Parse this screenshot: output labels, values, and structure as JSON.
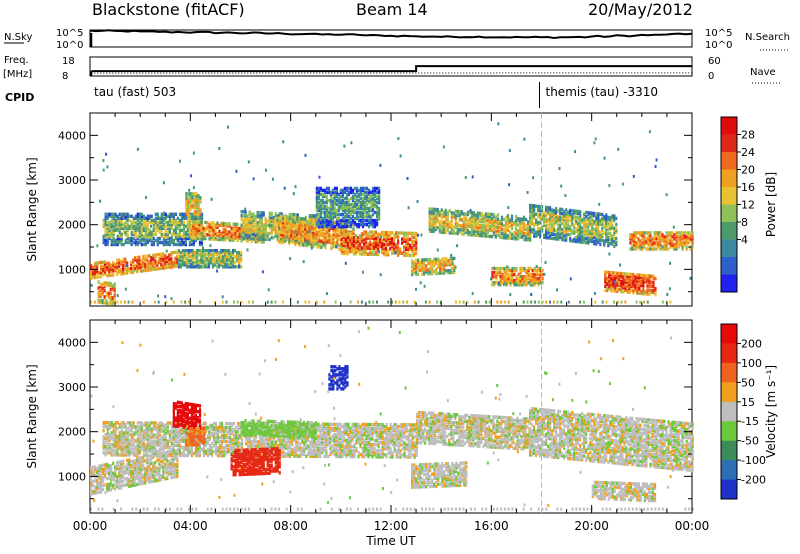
{
  "header": {
    "station": "Blackstone (fitACF)",
    "beam": "Beam 14",
    "date": "20/May/2012"
  },
  "chart_data": [
    {
      "type": "line",
      "panel": "noise",
      "left_label": "N.Sky",
      "left_ticks": [
        "10^5",
        "10^0"
      ],
      "right_label": "N.Search",
      "right_ticks": [
        "10^5",
        "10^0"
      ],
      "series": [
        {
          "name": "N.Sky",
          "x": [
            0,
            1,
            2,
            3,
            4,
            5,
            6,
            7,
            8,
            9,
            10,
            11,
            12,
            13,
            14,
            15,
            16,
            17,
            18,
            19,
            20,
            21,
            22,
            23,
            24
          ],
          "values": [
            0.95,
            0.93,
            0.9,
            0.88,
            0.86,
            0.84,
            0.82,
            0.8,
            0.77,
            0.74,
            0.72,
            0.68,
            0.65,
            0.62,
            0.6,
            0.6,
            0.58,
            0.57,
            0.57,
            0.58,
            0.62,
            0.66,
            0.7,
            0.75,
            0.8
          ]
        }
      ]
    },
    {
      "type": "line",
      "panel": "frequency",
      "left_label": "Freq.",
      "left_unit": "[MHz]",
      "left_ticks": [
        "18",
        "8"
      ],
      "right_label": "Nave",
      "right_ticks": [
        "60",
        "0"
      ],
      "series": [
        {
          "name": "Freq.",
          "x": [
            0.05,
            13.0,
            13.0,
            24.0
          ],
          "values": [
            10.6,
            10.6,
            13.2,
            13.2
          ]
        },
        {
          "name": "Nave",
          "x": [
            0.05,
            24.0
          ],
          "values": [
            9,
            10
          ]
        }
      ]
    },
    {
      "type": "annotation",
      "panel": "cpid",
      "label": "CPID",
      "segments": [
        {
          "start": 0,
          "text": "tau (fast) 503"
        },
        {
          "start": 18,
          "text": "themis (tau) -3310"
        }
      ]
    },
    {
      "type": "heatmap",
      "panel": "power",
      "ylabel": "Slant Range [km]",
      "ylim": [
        180,
        4500
      ],
      "yticks": [
        1000,
        2000,
        3000,
        4000
      ],
      "xlim": [
        0,
        24
      ],
      "colorbar": {
        "label": "Power [dB]",
        "ticks": [
          "28",
          "24",
          "20",
          "16",
          "12",
          "8",
          "4"
        ],
        "range": [
          0,
          30
        ],
        "colors": [
          "#2020f0",
          "#2f5fc8",
          "#3d8aa0",
          "#4d9a6a",
          "#8fc05a",
          "#e8c232",
          "#f0a020",
          "#ee6a1e",
          "#e02818",
          "#e00c0c"
        ]
      },
      "bands": [
        {
          "t0": 0.0,
          "t1": 3.5,
          "r0": 820,
          "r1": 1180,
          "start_range": 980,
          "end_range": 1250,
          "v": 23
        },
        {
          "t0": 0.3,
          "t1": 1.0,
          "r0": 280,
          "r1": 760,
          "start_range": 500,
          "end_range": 450,
          "v": 22
        },
        {
          "t0": 0.5,
          "t1": 4.5,
          "r0": 1550,
          "r1": 2250,
          "start_range": 1900,
          "end_range": 1900,
          "v": 13
        },
        {
          "t0": 3.5,
          "t1": 6.0,
          "r0": 1100,
          "r1": 1500,
          "start_range": 1250,
          "end_range": 1250,
          "v": 14
        },
        {
          "t0": 3.8,
          "t1": 4.4,
          "r0": 2100,
          "r1": 2700,
          "start_range": 2400,
          "end_range": 2400,
          "v": 18
        },
        {
          "t0": 4.0,
          "t1": 7.0,
          "r0": 1700,
          "r1": 2100,
          "start_range": 1900,
          "end_range": 1800,
          "v": 21
        },
        {
          "t0": 6.0,
          "t1": 9.0,
          "r0": 1600,
          "r1": 2200,
          "start_range": 2000,
          "end_range": 1900,
          "v": 16
        },
        {
          "t0": 7.5,
          "t1": 10.5,
          "r0": 1500,
          "r1": 2100,
          "start_range": 1900,
          "end_range": 1700,
          "v": 20
        },
        {
          "t0": 10.0,
          "t1": 13.0,
          "r0": 1300,
          "r1": 1800,
          "start_range": 1600,
          "end_range": 1550,
          "v": 24
        },
        {
          "t0": 9.0,
          "t1": 11.5,
          "r0": 2100,
          "r1": 3000,
          "start_range": 2400,
          "end_range": 2400,
          "v": 10
        },
        {
          "t0": 12.8,
          "t1": 14.5,
          "r0": 950,
          "r1": 1300,
          "start_range": 1050,
          "end_range": 1100,
          "v": 18
        },
        {
          "t0": 13.5,
          "t1": 17.5,
          "r0": 1850,
          "r1": 2350,
          "start_range": 2100,
          "end_range": 1900,
          "v": 17
        },
        {
          "t0": 16.0,
          "t1": 18.0,
          "r0": 700,
          "r1": 1100,
          "start_range": 850,
          "end_range": 850,
          "v": 20
        },
        {
          "t0": 17.5,
          "t1": 21.0,
          "r0": 1600,
          "r1": 2300,
          "start_range": 2100,
          "end_range": 1850,
          "v": 14
        },
        {
          "t0": 20.5,
          "t1": 22.5,
          "r0": 500,
          "r1": 950,
          "start_range": 750,
          "end_range": 650,
          "v": 25
        },
        {
          "t0": 21.5,
          "t1": 24.0,
          "r0": 1400,
          "r1": 1800,
          "start_range": 1650,
          "end_range": 1650,
          "v": 21
        }
      ]
    },
    {
      "type": "heatmap",
      "panel": "velocity",
      "xlabel": "Time UT",
      "ylabel": "Slant Range [km]",
      "ylim": [
        180,
        4500
      ],
      "yticks": [
        1000,
        2000,
        3000,
        4000
      ],
      "xlim": [
        0,
        24
      ],
      "xticks": [
        "00:00",
        "04:00",
        "08:00",
        "12:00",
        "16:00",
        "20:00",
        "00:00"
      ],
      "colorbar": {
        "label": "Velocity [m s⁻¹]",
        "ticks": [
          "200",
          "100",
          "50",
          "15",
          "-15",
          "-50",
          "-100",
          "-200"
        ],
        "colors": [
          "#1e32c8",
          "#2d6eb4",
          "#3c8c5a",
          "#6ec83c",
          "#bebebe",
          "#f0a01e",
          "#ee641e",
          "#e62814",
          "#e60a0a"
        ]
      },
      "bands": [
        {
          "t0": 0.0,
          "t1": 3.5,
          "r0": 700,
          "r1": 1300,
          "start_range": 900,
          "end_range": 1300,
          "v": 0
        },
        {
          "t0": 0.5,
          "t1": 13.0,
          "r0": 1450,
          "r1": 2200,
          "start_range": 1850,
          "end_range": 1800,
          "v": 0
        },
        {
          "t0": 3.3,
          "t1": 4.4,
          "r0": 2150,
          "r1": 2700,
          "start_range": 2400,
          "end_range": 2300,
          "v": -220
        },
        {
          "t0": 3.8,
          "t1": 4.6,
          "r0": 1700,
          "r1": 2100,
          "start_range": 1900,
          "end_range": 1900,
          "v": -60
        },
        {
          "t0": 5.6,
          "t1": 7.6,
          "r0": 1050,
          "r1": 1600,
          "start_range": 1300,
          "end_range": 1350,
          "v": -180
        },
        {
          "t0": 6.0,
          "t1": 9.0,
          "r0": 1950,
          "r1": 2300,
          "start_range": 2100,
          "end_range": 2050,
          "v": 30
        },
        {
          "t0": 9.5,
          "t1": 10.3,
          "r0": 3000,
          "r1": 3500,
          "start_range": 3200,
          "end_range": 3200,
          "v": 220
        },
        {
          "t0": 13.0,
          "t1": 17.5,
          "r0": 1800,
          "r1": 2500,
          "start_range": 2100,
          "end_range": 1950,
          "v": 0
        },
        {
          "t0": 12.8,
          "t1": 15.0,
          "r0": 800,
          "r1": 1300,
          "start_range": 1000,
          "end_range": 1050,
          "v": 0
        },
        {
          "t0": 17.5,
          "t1": 24.0,
          "r0": 1450,
          "r1": 2500,
          "start_range": 2000,
          "end_range": 1650,
          "v": 0
        },
        {
          "t0": 20.0,
          "t1": 22.5,
          "r0": 500,
          "r1": 900,
          "start_range": 700,
          "end_range": 650,
          "v": 0
        }
      ]
    }
  ]
}
